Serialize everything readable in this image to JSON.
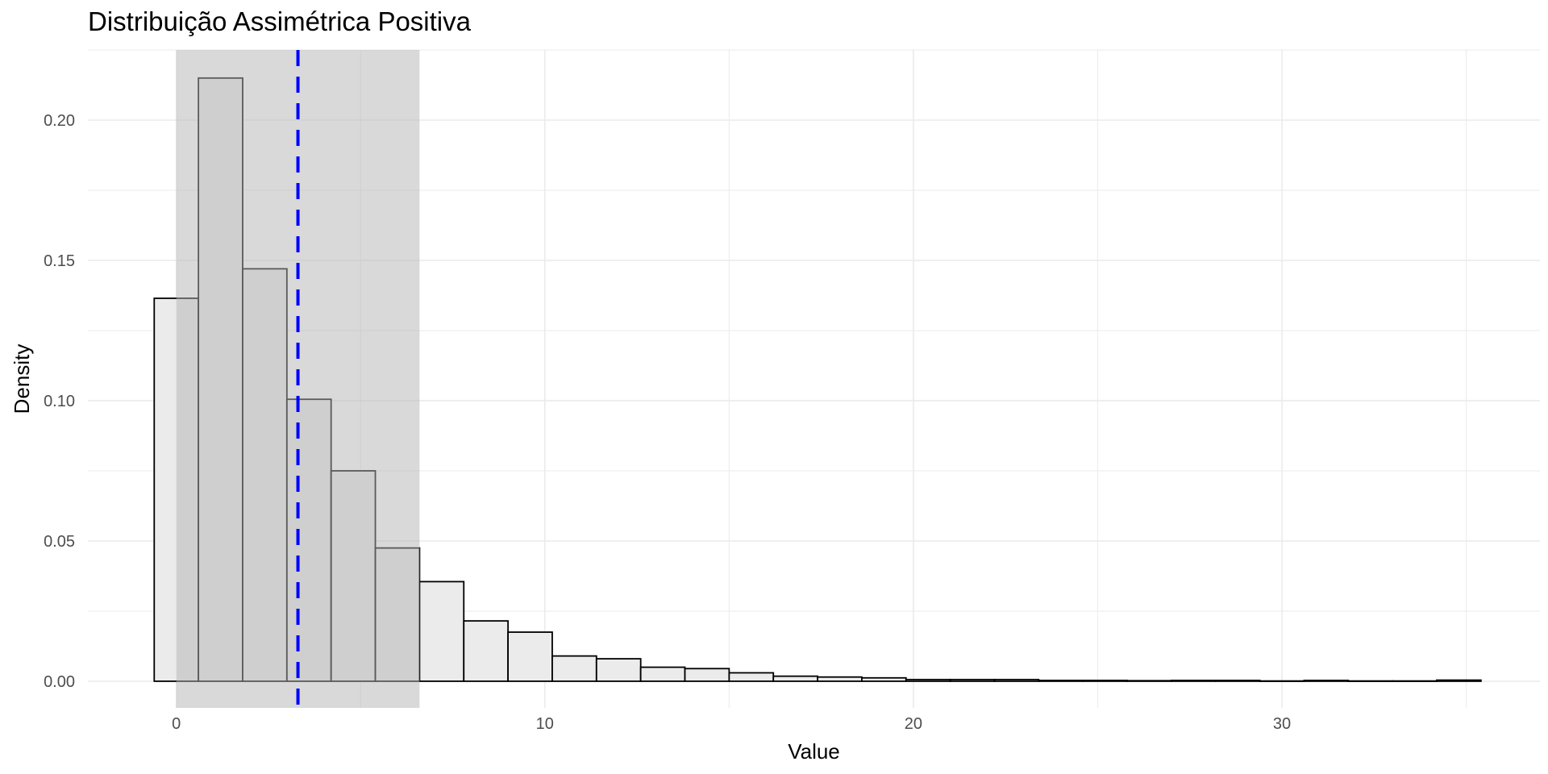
{
  "chart_data": {
    "type": "bar",
    "title": "Distribuição Assimétrica Positiva",
    "xlabel": "Value",
    "ylabel": "Density",
    "xlim": [
      -2.4,
      37.0
    ],
    "ylim": [
      -0.0095,
      0.225
    ],
    "x_ticks": [
      0,
      10,
      20,
      30
    ],
    "x_tick_labels": [
      "0",
      "10",
      "20",
      "30"
    ],
    "y_ticks": [
      0.0,
      0.05,
      0.1,
      0.15,
      0.2
    ],
    "y_tick_labels": [
      "0.00",
      "0.05",
      "0.10",
      "0.15",
      "0.20"
    ],
    "grid": true,
    "bin_width": 1.2,
    "bin_starts": [
      -0.6,
      0.6,
      1.8,
      3.0,
      4.2,
      5.4,
      6.6,
      7.8,
      9.0,
      10.2,
      11.4,
      12.6,
      13.8,
      15.0,
      16.2,
      17.4,
      18.6,
      19.8,
      21.0,
      22.2,
      23.4,
      24.6,
      25.8,
      27.0,
      28.2,
      29.4,
      30.6,
      31.8,
      33.0,
      34.2
    ],
    "values": [
      0.1365,
      0.215,
      0.147,
      0.1005,
      0.075,
      0.0475,
      0.0355,
      0.0215,
      0.0175,
      0.009,
      0.008,
      0.005,
      0.0045,
      0.003,
      0.0018,
      0.0015,
      0.0012,
      0.0006,
      0.0006,
      0.0006,
      0.0003,
      0.0003,
      0.0002,
      0.0003,
      0.0003,
      0.0001,
      0.0003,
      0.0001,
      0.0001,
      0.0004
    ],
    "shaded_region": {
      "x_start": 0.0,
      "x_end": 6.6
    },
    "reference_line": {
      "x": 3.3,
      "style": "dashed"
    },
    "colors": {
      "bar_fill": "#ebebeb",
      "bar_stroke": "#000000",
      "shade": "#b3b3b3",
      "reference_line": "#0000ff",
      "grid": "#ebebeb"
    }
  }
}
